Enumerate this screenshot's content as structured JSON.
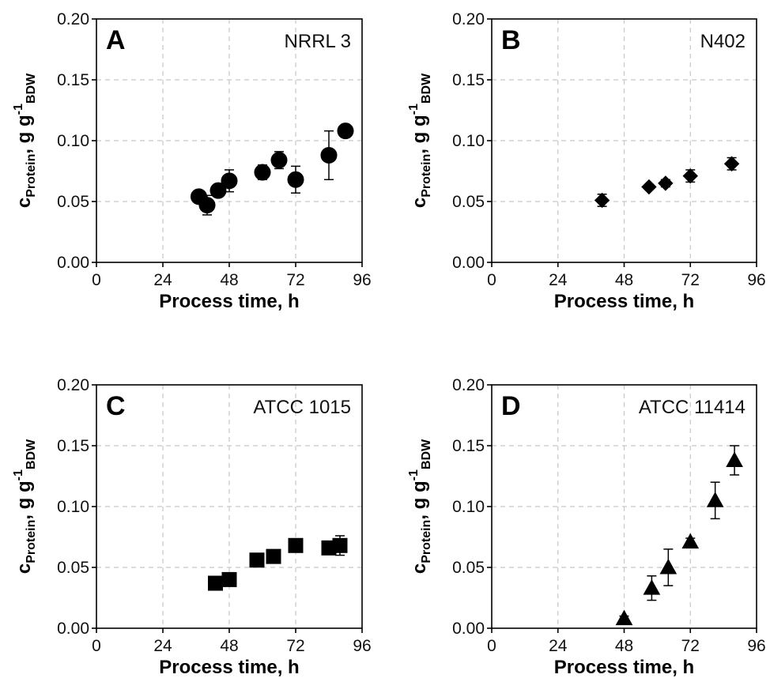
{
  "chart_data": [
    {
      "type": "scatter",
      "panel_label": "A",
      "strain": "NRRL 3",
      "marker": "circle",
      "xlabel": "Process time, h",
      "ylabel": {
        "main": "c",
        "sub_protein": "Protein",
        "rest": ", g g",
        "sup": "-1",
        "sub_bdw": "BDW"
      },
      "xlim": [
        0,
        96
      ],
      "ylim": [
        0,
        0.2
      ],
      "xticks": [
        "0",
        "24",
        "48",
        "72",
        "96"
      ],
      "yticks": [
        "0.00",
        "0.05",
        "0.10",
        "0.15",
        "0.20"
      ],
      "grid": true,
      "points": [
        {
          "x": 37,
          "y": 0.054,
          "err": 0.005
        },
        {
          "x": 40,
          "y": 0.047,
          "err": 0.008
        },
        {
          "x": 44,
          "y": 0.059,
          "err": 0.004
        },
        {
          "x": 48,
          "y": 0.067,
          "err": 0.009
        },
        {
          "x": 60,
          "y": 0.074,
          "err": 0.006
        },
        {
          "x": 66,
          "y": 0.084,
          "err": 0.007
        },
        {
          "x": 72,
          "y": 0.068,
          "err": 0.011
        },
        {
          "x": 84,
          "y": 0.088,
          "err": 0.02
        },
        {
          "x": 90,
          "y": 0.108,
          "err": 0.005
        }
      ]
    },
    {
      "type": "scatter",
      "panel_label": "B",
      "strain": "N402",
      "marker": "diamond",
      "xlabel": "Process time, h",
      "ylabel": {
        "main": "c",
        "sub_protein": "Protein",
        "rest": ", g g",
        "sup": "-1",
        "sub_bdw": "BDW"
      },
      "xlim": [
        0,
        96
      ],
      "ylim": [
        0,
        0.2
      ],
      "xticks": [
        "0",
        "24",
        "48",
        "72",
        "96"
      ],
      "yticks": [
        "0.00",
        "0.05",
        "0.10",
        "0.15",
        "0.20"
      ],
      "grid": true,
      "points": [
        {
          "x": 40,
          "y": 0.051,
          "err": 0.005
        },
        {
          "x": 57,
          "y": 0.062,
          "err": 0.002
        },
        {
          "x": 63,
          "y": 0.065,
          "err": 0.003
        },
        {
          "x": 72,
          "y": 0.071,
          "err": 0.005
        },
        {
          "x": 87,
          "y": 0.081,
          "err": 0.005
        }
      ]
    },
    {
      "type": "scatter",
      "panel_label": "C",
      "strain": "ATCC 1015",
      "marker": "square",
      "xlabel": "Process time, h",
      "ylabel": {
        "main": "c",
        "sub_protein": "Protein",
        "rest": ", g g",
        "sup": "-1",
        "sub_bdw": "BDW"
      },
      "xlim": [
        0,
        96
      ],
      "ylim": [
        0,
        0.2
      ],
      "xticks": [
        "0",
        "24",
        "48",
        "72",
        "96"
      ],
      "yticks": [
        "0.00",
        "0.05",
        "0.10",
        "0.15",
        "0.20"
      ],
      "grid": true,
      "points": [
        {
          "x": 43,
          "y": 0.037,
          "err": 0.002
        },
        {
          "x": 48,
          "y": 0.04,
          "err": 0.003
        },
        {
          "x": 58,
          "y": 0.056,
          "err": 0.003
        },
        {
          "x": 64,
          "y": 0.059,
          "err": 0.003
        },
        {
          "x": 72,
          "y": 0.068,
          "err": 0.003
        },
        {
          "x": 84,
          "y": 0.066,
          "err": 0.003
        },
        {
          "x": 88,
          "y": 0.068,
          "err": 0.008
        }
      ]
    },
    {
      "type": "scatter",
      "panel_label": "D",
      "strain": "ATCC 11414",
      "marker": "triangle",
      "xlabel": "Process time, h",
      "ylabel": {
        "main": "c",
        "sub_protein": "Protein",
        "rest": ", g g",
        "sup": "-1",
        "sub_bdw": "BDW"
      },
      "xlim": [
        0,
        96
      ],
      "ylim": [
        0,
        0.2
      ],
      "xticks": [
        "0",
        "24",
        "48",
        "72",
        "96"
      ],
      "yticks": [
        "0.00",
        "0.05",
        "0.10",
        "0.15",
        "0.20"
      ],
      "grid": true,
      "points": [
        {
          "x": 48,
          "y": 0.008,
          "err": 0.002
        },
        {
          "x": 58,
          "y": 0.033,
          "err": 0.01
        },
        {
          "x": 64,
          "y": 0.05,
          "err": 0.015
        },
        {
          "x": 72,
          "y": 0.071,
          "err": 0.003
        },
        {
          "x": 81,
          "y": 0.105,
          "err": 0.015
        },
        {
          "x": 88,
          "y": 0.138,
          "err": 0.012
        }
      ]
    }
  ]
}
